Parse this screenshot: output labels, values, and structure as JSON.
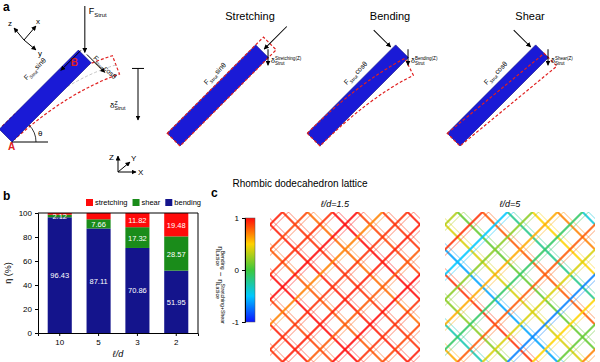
{
  "panel_labels": [
    "a",
    "b",
    "c"
  ],
  "diagram": {
    "force": {
      "main": "F",
      "sub": "Strut"
    },
    "force_sin": {
      "main": "F",
      "sub": "Strut",
      "tail": "sinθ"
    },
    "force_cos": {
      "main": "F",
      "sub": "Strut",
      "tail": "cosθ"
    },
    "deflection": {
      "main": "δ",
      "sub": "Strut",
      "sup": "Z"
    },
    "point_a": "A",
    "point_b": "B",
    "angle": "θ",
    "local_axes": [
      "x",
      "y",
      "z"
    ],
    "global_axes": [
      "X",
      "Y",
      "Z"
    ],
    "modes": [
      {
        "title": "Stretching",
        "force": {
          "main": "F",
          "sub": "Strut",
          "tail": "sinθ"
        },
        "deflection": {
          "main": "δ",
          "sub": "Strut",
          "sup": "Stretching(Z)"
        }
      },
      {
        "title": "Bending",
        "force": {
          "main": "F",
          "sub": "Strut",
          "tail": "cosθ"
        },
        "deflection": {
          "main": "δ",
          "sub": "Strut",
          "sup": "Bending(Z)"
        }
      },
      {
        "title": "Shear",
        "force": {
          "main": "F",
          "sub": "Strut",
          "tail": "cosθ"
        },
        "deflection": {
          "main": "δ",
          "sub": "Strut",
          "sup": "Shear(Z)"
        }
      }
    ]
  },
  "lattice_title": "Rhombic dodecahedron lattice",
  "chart_data": {
    "type": "bar",
    "stacked": true,
    "data_labels": true,
    "legend": "top",
    "x_label": "ℓ/d",
    "y_label": "η (%)",
    "categories": [
      "10",
      "5",
      "3",
      "2"
    ],
    "ylim": [
      0,
      100
    ],
    "yticks": [
      0,
      20,
      40,
      60,
      80,
      100
    ],
    "series": [
      {
        "name": "bending",
        "color": "#14148c",
        "values": [
          96.43,
          87.11,
          70.86,
          51.95
        ]
      },
      {
        "name": "shear",
        "color": "#1a8c1a",
        "values": [
          2.12,
          7.66,
          17.32,
          28.57
        ]
      },
      {
        "name": "stretching",
        "color": "#ff0a0a",
        "values": [
          1.45,
          5.23,
          11.82,
          19.48
        ],
        "value_labels": [
          null,
          null,
          "11.82",
          "19.48"
        ]
      }
    ]
  },
  "lattice_maps": {
    "colorbar": {
      "range": [
        -1,
        1
      ],
      "ticks": [
        -1,
        0,
        1
      ],
      "label": [
        {
          "main": "η",
          "sub": "Lattice",
          "sup": "Bending"
        },
        {
          "main": "−"
        },
        {
          "main": "η",
          "sub": "Lattice",
          "sup": "Stretching+Shear"
        }
      ]
    },
    "panels": [
      {
        "title": "ℓ/d=1.5",
        "strut_values": [
          0.9,
          0.95,
          0.85,
          1,
          0.8,
          0.95,
          0.9,
          0.75,
          1,
          0.85,
          0.9,
          0.95,
          0.95,
          0.85,
          0.9,
          1,
          0.7,
          0.9,
          0.95,
          0.8,
          1,
          0.9,
          0.85,
          0.95
        ]
      },
      {
        "title": "ℓ/d=5",
        "strut_values": [
          0.6,
          -0.3,
          0.2,
          0.9,
          -0.6,
          0.4,
          0.1,
          0.8,
          -0.2,
          0.5,
          0.7,
          -0.4,
          0.3,
          0.9,
          -0.5,
          0.2,
          0.6,
          -0.1,
          0.8,
          0.4,
          -0.7,
          0.5,
          0.1,
          0.7
        ]
      }
    ]
  }
}
